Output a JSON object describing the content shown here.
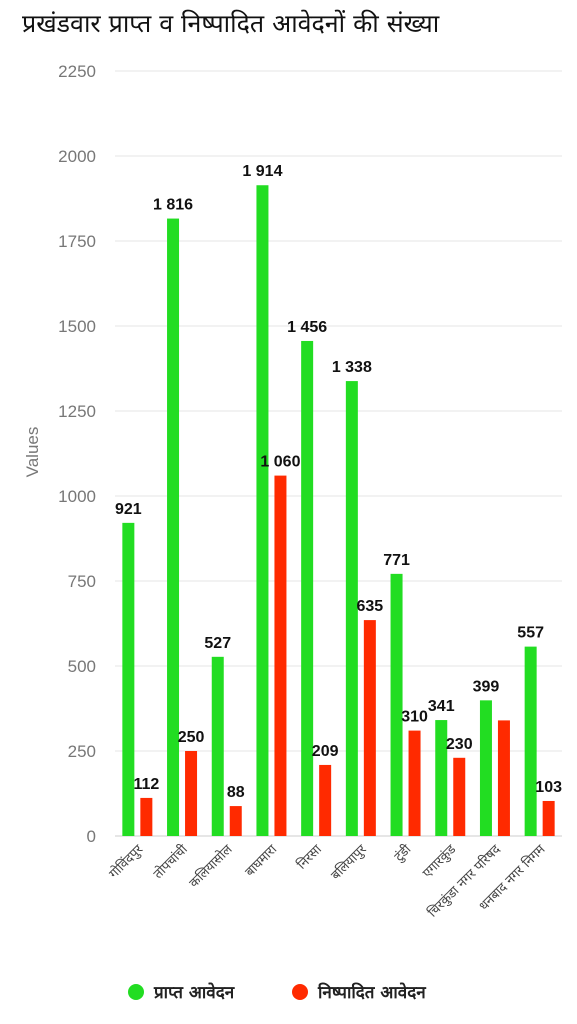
{
  "chart_data": {
    "type": "bar",
    "title": "प्रखंडवार प्राप्त व निष्पादित आवेदनों की संख्या",
    "xlabel": "",
    "ylabel": "Values",
    "ylim": [
      0,
      2250
    ],
    "yticks": [
      0,
      250,
      500,
      750,
      1000,
      1250,
      1500,
      1750,
      2000,
      2250
    ],
    "grid": true,
    "legend_position": "bottom",
    "categories": [
      "गोविंदपुर",
      "तोपचांची",
      "कलियासोल",
      "बाघमारा",
      "निरसा",
      "बलियापुर",
      "टुंडी",
      "एगारकुंड",
      "चिरकुंडा नगर परिषद",
      "धनबाद नगर निगम"
    ],
    "series": [
      {
        "name": "प्राप्त आवेदन",
        "color": "#22dd22",
        "values": [
          921,
          1816,
          527,
          1914,
          1456,
          1338,
          771,
          341,
          399,
          557
        ],
        "labels": [
          "921",
          "1 816",
          "527",
          "1 914",
          "1 456",
          "1 338",
          "771",
          "341",
          "399",
          "557"
        ]
      },
      {
        "name": "निष्पादित आवेदन",
        "color": "#ff2a00",
        "values": [
          112,
          250,
          88,
          1060,
          209,
          635,
          310,
          230,
          340,
          103
        ],
        "labels": [
          "112",
          "250",
          "88",
          "1 060",
          "209",
          "635",
          "310",
          "230",
          "",
          "103"
        ]
      }
    ]
  }
}
